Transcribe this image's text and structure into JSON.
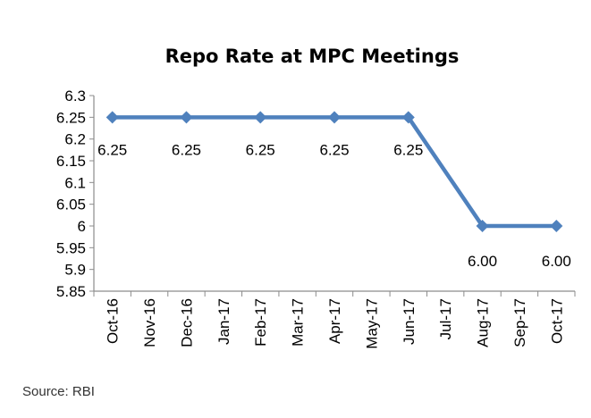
{
  "source_note": "Source: RBI",
  "chart_data": {
    "type": "line",
    "title": "Repo Rate at MPC Meetings",
    "xlabel": "",
    "ylabel": "",
    "categories": [
      "Oct-16",
      "Nov-16",
      "Dec-16",
      "Jan-17",
      "Feb-17",
      "Mar-17",
      "Apr-17",
      "May-17",
      "Jun-17",
      "Jul-17",
      "Aug-17",
      "Sep-17",
      "Oct-17"
    ],
    "y_ticks": [
      "6.3",
      "6.25",
      "6.2",
      "6.15",
      "6.1",
      "6.05",
      "6",
      "5.95",
      "5.9",
      "5.85"
    ],
    "ylim": [
      5.85,
      6.3
    ],
    "grid": false,
    "series": [
      {
        "points": [
          {
            "x": "Oct-16",
            "y": 6.25,
            "label": "6.25"
          },
          {
            "x": "Dec-16",
            "y": 6.25,
            "label": "6.25"
          },
          {
            "x": "Feb-17",
            "y": 6.25,
            "label": "6.25"
          },
          {
            "x": "Apr-17",
            "y": 6.25,
            "label": "6.25"
          },
          {
            "x": "Jun-17",
            "y": 6.25,
            "label": "6.25"
          },
          {
            "x": "Aug-17",
            "y": 6.0,
            "label": "6.00"
          },
          {
            "x": "Oct-17",
            "y": 6.0,
            "label": "6.00"
          }
        ],
        "color": "#4f81bd"
      }
    ]
  }
}
